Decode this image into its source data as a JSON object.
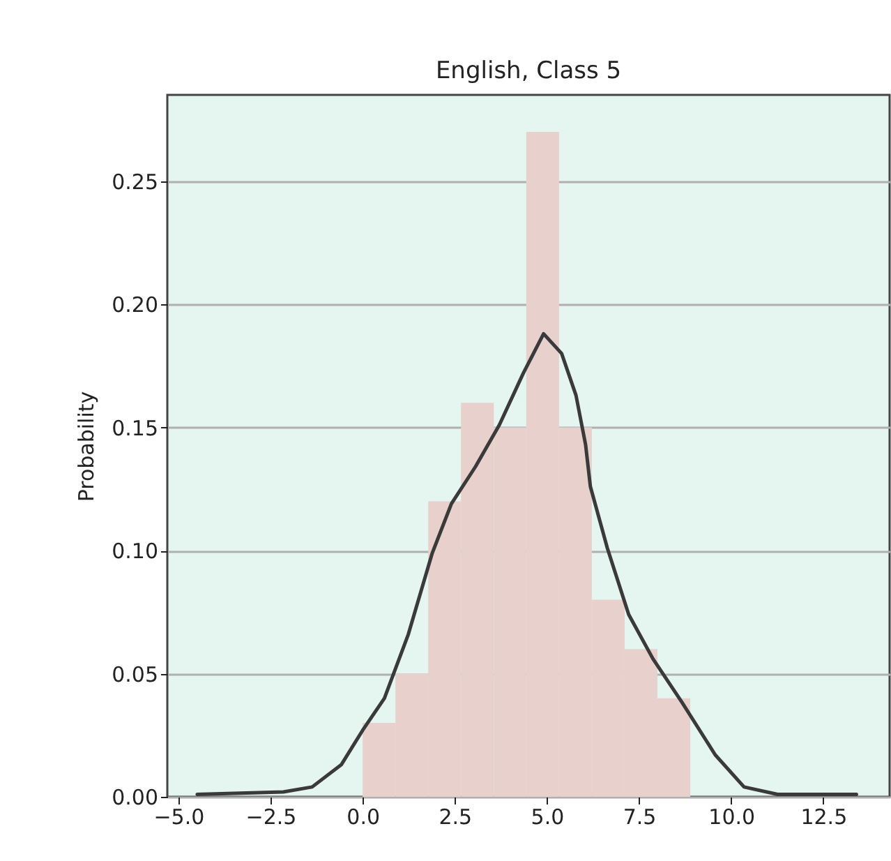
{
  "chart_data": {
    "type": "histogram",
    "title": "English, Class 5",
    "ylabel": "Probability",
    "bins": [
      0,
      0.89,
      1.78,
      2.67,
      3.56,
      4.44,
      5.33,
      6.22,
      7.11,
      8.0,
      8.89
    ],
    "values": [
      0.03,
      0.05,
      0.12,
      0.16,
      0.15,
      0.27,
      0.15,
      0.08,
      0.06,
      0.04
    ],
    "color": "#e8d0cc",
    "series": [
      {
        "type": "line",
        "color": "#3a3a3a",
        "line_style": "solid",
        "marker": "none",
        "x": [
          -4.49,
          -2.15,
          -1.37,
          -0.58,
          0,
          0.59,
          1.24,
          1.89,
          2.41,
          3.06,
          3.71,
          4.36,
          4.91,
          5.4,
          5.79,
          6.05,
          6.18,
          6.64,
          7.22,
          7.88,
          8.66,
          9.57,
          10.35,
          11.26,
          13.4
        ],
        "values": [
          0.001,
          0.002,
          0.004,
          0.013,
          0.027,
          0.04,
          0.066,
          0.099,
          0.119,
          0.134,
          0.151,
          0.172,
          0.188,
          0.18,
          0.163,
          0.143,
          0.126,
          0.101,
          0.074,
          0.056,
          0.0385,
          0.017,
          0.004,
          0.001,
          0.001
        ]
      }
    ],
    "xlim": [
      -5.3,
      14.3
    ],
    "xticks": [
      {
        "value": -5,
        "label": "−5.0"
      },
      {
        "value": -2.5,
        "label": "−2.5"
      },
      {
        "value": 0,
        "label": "0.0"
      },
      {
        "value": 2.5,
        "label": "2.5"
      },
      {
        "value": 5,
        "label": "5.0"
      },
      {
        "value": 7.5,
        "label": "7.5"
      },
      {
        "value": 10,
        "label": "10.0"
      },
      {
        "value": 12.5,
        "label": "12.5"
      }
    ],
    "ylim": [
      0,
      0.285
    ],
    "yticks": [
      {
        "value": 0,
        "label": "0.00"
      },
      {
        "value": 0.05,
        "label": "0.05"
      },
      {
        "value": 0.1,
        "label": "0.10"
      },
      {
        "value": 0.15,
        "label": "0.15"
      },
      {
        "value": 0.2,
        "label": "0.20"
      },
      {
        "value": 0.25,
        "label": "0.25"
      }
    ],
    "grid": "y"
  }
}
